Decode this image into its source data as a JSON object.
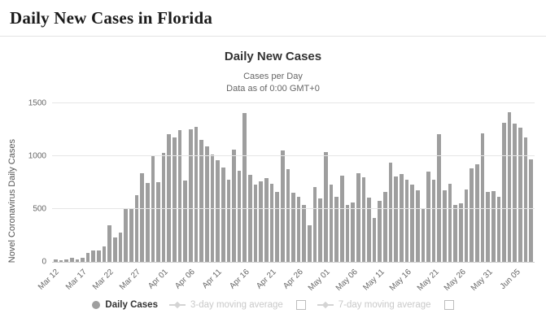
{
  "page": {
    "title": "Daily New Cases in Florida"
  },
  "chart": {
    "title": "Daily New Cases",
    "subtitle_line1": "Cases per Day",
    "subtitle_line2": "Data as of 0:00 GMT+0",
    "y_axis_label": "Novel Coronavirus Daily Cases"
  },
  "legend": {
    "daily_cases": "Daily Cases",
    "ma3": "3-day moving average",
    "ma7": "7-day moving average"
  },
  "colors": {
    "bar": "#9e9e9e",
    "grid": "#e6e6e6",
    "disabled_legend": "#c9c9c9"
  },
  "chart_data": {
    "type": "bar",
    "title": "Daily New Cases",
    "subtitle": "Cases per Day — Data as of 0:00 GMT+0",
    "xlabel": "",
    "ylabel": "Novel Coronavirus Daily Cases",
    "ylim": [
      0,
      1500
    ],
    "yticks": [
      0,
      500,
      1000,
      1500
    ],
    "x_tick_interval": 5,
    "x_tick_labels": [
      "Mar 12",
      "Mar 17",
      "Mar 22",
      "Mar 27",
      "Apr 01",
      "Apr 06",
      "Apr 11",
      "Apr 16",
      "Apr 21",
      "Apr 26",
      "May 01",
      "May 06",
      "May 11",
      "May 16",
      "May 21",
      "May 26",
      "May 31",
      "Jun 05"
    ],
    "categories": [
      "Mar 12",
      "Mar 13",
      "Mar 14",
      "Mar 15",
      "Mar 16",
      "Mar 17",
      "Mar 18",
      "Mar 19",
      "Mar 20",
      "Mar 21",
      "Mar 22",
      "Mar 23",
      "Mar 24",
      "Mar 25",
      "Mar 26",
      "Mar 27",
      "Mar 28",
      "Mar 29",
      "Mar 30",
      "Mar 31",
      "Apr 01",
      "Apr 02",
      "Apr 03",
      "Apr 04",
      "Apr 05",
      "Apr 06",
      "Apr 07",
      "Apr 08",
      "Apr 09",
      "Apr 10",
      "Apr 11",
      "Apr 12",
      "Apr 13",
      "Apr 14",
      "Apr 15",
      "Apr 16",
      "Apr 17",
      "Apr 18",
      "Apr 19",
      "Apr 20",
      "Apr 21",
      "Apr 22",
      "Apr 23",
      "Apr 24",
      "Apr 25",
      "Apr 26",
      "Apr 27",
      "Apr 28",
      "Apr 29",
      "Apr 30",
      "May 01",
      "May 02",
      "May 03",
      "May 04",
      "May 05",
      "May 06",
      "May 07",
      "May 08",
      "May 09",
      "May 10",
      "May 11",
      "May 12",
      "May 13",
      "May 14",
      "May 15",
      "May 16",
      "May 17",
      "May 18",
      "May 19",
      "May 20",
      "May 21",
      "May 22",
      "May 23",
      "May 24",
      "May 25",
      "May 26",
      "May 27",
      "May 28",
      "May 29",
      "May 30",
      "May 31",
      "Jun 01",
      "Jun 02",
      "Jun 03",
      "Jun 04",
      "Jun 05",
      "Jun 06",
      "Jun 07",
      "Jun 08"
    ],
    "values": [
      25,
      19,
      26,
      39,
      24,
      36,
      88,
      106,
      110,
      145,
      347,
      234,
      277,
      508,
      510,
      633,
      839,
      746,
      1007,
      752,
      1033,
      1211,
      1180,
      1245,
      770,
      1254,
      1280,
      1157,
      1089,
      1014,
      962,
      889,
      776,
      1063,
      858,
      1408,
      822,
      729,
      759,
      796,
      742,
      665,
      1055,
      880,
      653,
      615,
      537,
      347,
      708,
      600,
      1038,
      734,
      615,
      819,
      542,
      563,
      839,
      802,
      606,
      416,
      579,
      660,
      940,
      808,
      828,
      777,
      731,
      679,
      502,
      857,
      776,
      1204,
      677,
      740,
      535,
      556,
      684,
      882,
      927,
      1212,
      664,
      667,
      617,
      1317,
      1419,
      1305,
      1270,
      1180,
      966
    ],
    "legend_entries": [
      "Daily Cases",
      "3-day moving average",
      "7-day moving average"
    ],
    "legend_position": "bottom",
    "grid": true
  }
}
